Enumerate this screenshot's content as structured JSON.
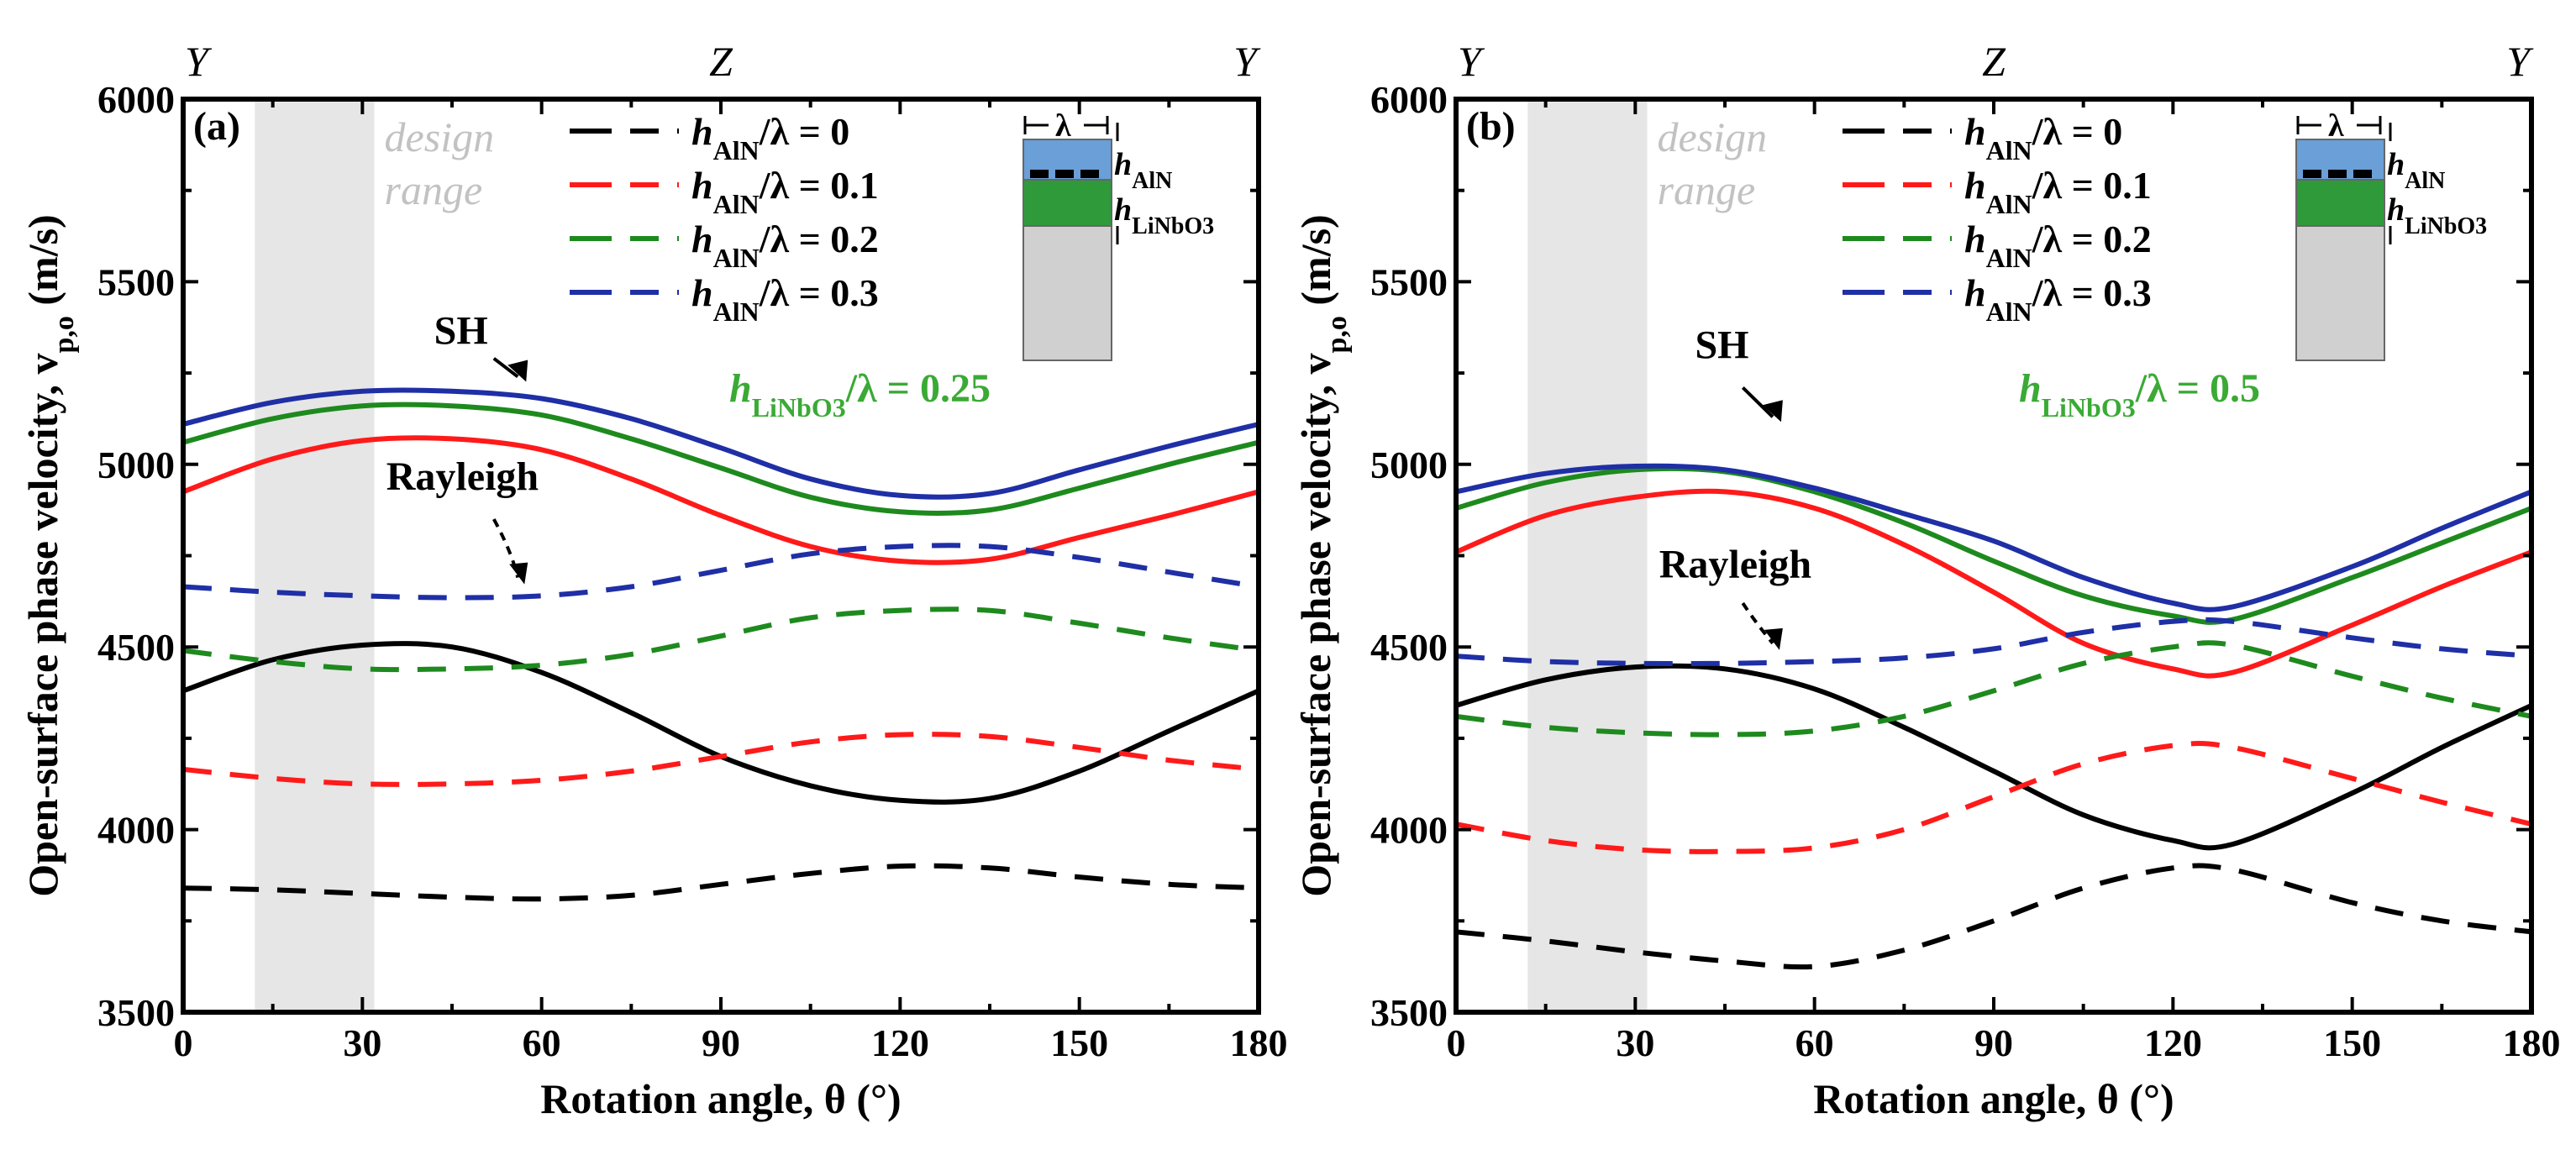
{
  "figure": {
    "colors": {
      "black": "#000000",
      "red": "#ff1a1a",
      "green": "#1e8a1e",
      "blue": "#1f2fa6",
      "design_range": "#e6e6e6",
      "design_text": "#c2c2c2",
      "hlinbo_label": "#3aaa35",
      "inset_aln": "#6a9fd8",
      "inset_linbo": "#2e9a3a",
      "inset_substrate": "#d0d0d0"
    }
  },
  "chart_data": [
    {
      "type": "line",
      "panel_label": "(a)",
      "xlabel": "Rotation angle, θ (°)",
      "ylabel": "Open-surface phase velocity, v",
      "ylabel_sub": "p,o",
      "ylabel_unit": " (m/s)",
      "xlim": [
        0,
        180
      ],
      "ylim": [
        3500,
        6000
      ],
      "xticks": [
        0,
        30,
        60,
        90,
        120,
        150,
        180
      ],
      "yticks": [
        3500,
        4000,
        4500,
        5000,
        5500,
        6000
      ],
      "top_direction_labels": [
        "Y",
        "Z",
        "Y"
      ],
      "top_direction_positions": [
        0,
        90,
        180
      ],
      "design_range": [
        12,
        32
      ],
      "design_range_text": [
        "design",
        "range"
      ],
      "h_linbo3_label": {
        "prefix": "h",
        "sub": "LiNbO3",
        "suffix": "/λ = 0.25"
      },
      "mode_labels": [
        "SH",
        "Rayleigh"
      ],
      "legend": [
        {
          "prefix": "h",
          "sub": "AlN",
          "suffix": "/λ = 0",
          "color_key": "black"
        },
        {
          "prefix": "h",
          "sub": "AlN",
          "suffix": "/λ = 0.1",
          "color_key": "red"
        },
        {
          "prefix": "h",
          "sub": "AlN",
          "suffix": "/λ = 0.2",
          "color_key": "green"
        },
        {
          "prefix": "h",
          "sub": "AlN",
          "suffix": "/λ = 0.3",
          "color_key": "blue"
        }
      ],
      "inset_labels": {
        "lambda": "λ",
        "h": "h",
        "aln_sub": "AlN",
        "linbo_sub": "LiNbO3"
      },
      "x": [
        0,
        15,
        30,
        45,
        60,
        75,
        90,
        105,
        120,
        135,
        150,
        165,
        180
      ],
      "series": [
        {
          "name": "hAlN/λ = 0 (SH)",
          "mode": "SH",
          "color_key": "black",
          "dash": false,
          "values": [
            4380,
            4465,
            4505,
            4500,
            4430,
            4320,
            4200,
            4120,
            4080,
            4085,
            4160,
            4270,
            4380
          ]
        },
        {
          "name": "hAlN/λ = 0.1 (SH)",
          "mode": "SH",
          "color_key": "red",
          "dash": false,
          "values": [
            4925,
            5015,
            5065,
            5070,
            5040,
            4960,
            4860,
            4775,
            4735,
            4740,
            4800,
            4860,
            4925
          ]
        },
        {
          "name": "hAlN/λ = 0.2 (SH)",
          "mode": "SH",
          "color_key": "green",
          "dash": false,
          "values": [
            5060,
            5125,
            5160,
            5160,
            5135,
            5070,
            4990,
            4910,
            4870,
            4875,
            4935,
            5000,
            5060
          ]
        },
        {
          "name": "hAlN/λ = 0.3 (SH)",
          "mode": "SH",
          "color_key": "blue",
          "dash": false,
          "values": [
            5110,
            5170,
            5200,
            5200,
            5180,
            5125,
            5045,
            4960,
            4915,
            4920,
            4985,
            5050,
            5110
          ]
        },
        {
          "name": "hAlN/λ = 0 (Rayleigh)",
          "mode": "Rayleigh",
          "color_key": "black",
          "dash": true,
          "values": [
            3840,
            3835,
            3825,
            3815,
            3810,
            3820,
            3850,
            3880,
            3900,
            3895,
            3870,
            3850,
            3840
          ]
        },
        {
          "name": "hAlN/λ = 0.1 (Rayleigh)",
          "mode": "Rayleigh",
          "color_key": "red",
          "dash": true,
          "values": [
            4165,
            4140,
            4125,
            4125,
            4135,
            4160,
            4200,
            4240,
            4260,
            4255,
            4225,
            4190,
            4165
          ]
        },
        {
          "name": "hAlN/λ = 0.2 (Rayleigh)",
          "mode": "Rayleigh",
          "color_key": "green",
          "dash": true,
          "values": [
            4490,
            4460,
            4440,
            4440,
            4450,
            4480,
            4530,
            4580,
            4600,
            4600,
            4565,
            4525,
            4490
          ]
        },
        {
          "name": "hAlN/λ = 0.3 (Rayleigh)",
          "mode": "Rayleigh",
          "color_key": "blue",
          "dash": true,
          "values": [
            4665,
            4650,
            4640,
            4635,
            4640,
            4665,
            4710,
            4755,
            4775,
            4775,
            4745,
            4705,
            4665
          ]
        }
      ]
    },
    {
      "type": "line",
      "panel_label": "(b)",
      "xlabel": "Rotation angle, θ (°)",
      "ylabel": "Open-surface phase velocity, v",
      "ylabel_sub": "p,o",
      "ylabel_unit": " (m/s)",
      "xlim": [
        0,
        180
      ],
      "ylim": [
        3500,
        6000
      ],
      "xticks": [
        0,
        30,
        60,
        90,
        120,
        150,
        180
      ],
      "yticks": [
        3500,
        4000,
        4500,
        5000,
        5500,
        6000
      ],
      "top_direction_labels": [
        "Y",
        "Z",
        "Y"
      ],
      "top_direction_positions": [
        0,
        90,
        180
      ],
      "design_range": [
        12,
        32
      ],
      "design_range_text": [
        "design",
        "range"
      ],
      "h_linbo3_label": {
        "prefix": "h",
        "sub": "LiNbO3",
        "suffix": "/λ = 0.5"
      },
      "mode_labels": [
        "SH",
        "Rayleigh"
      ],
      "legend": [
        {
          "prefix": "h",
          "sub": "AlN",
          "suffix": "/λ = 0",
          "color_key": "black"
        },
        {
          "prefix": "h",
          "sub": "AlN",
          "suffix": "/λ = 0.1",
          "color_key": "red"
        },
        {
          "prefix": "h",
          "sub": "AlN",
          "suffix": "/λ = 0.2",
          "color_key": "green"
        },
        {
          "prefix": "h",
          "sub": "AlN",
          "suffix": "/λ = 0.3",
          "color_key": "blue"
        }
      ],
      "inset_labels": {
        "lambda": "λ",
        "h": "h",
        "aln_sub": "AlN",
        "linbo_sub": "LiNbO3"
      },
      "x": [
        0,
        15,
        30,
        45,
        60,
        75,
        90,
        105,
        120,
        130,
        150,
        165,
        180
      ],
      "series": [
        {
          "name": "hAlN/λ = 0 (SH)",
          "mode": "SH",
          "color_key": "black",
          "dash": false,
          "values": [
            4340,
            4410,
            4445,
            4440,
            4385,
            4280,
            4160,
            4040,
            3970,
            3960,
            4100,
            4225,
            4340
          ]
        },
        {
          "name": "hAlN/λ = 0.1 (SH)",
          "mode": "SH",
          "color_key": "red",
          "dash": false,
          "values": [
            4760,
            4860,
            4910,
            4925,
            4880,
            4780,
            4650,
            4510,
            4440,
            4430,
            4560,
            4665,
            4760
          ]
        },
        {
          "name": "hAlN/λ = 0.2 (SH)",
          "mode": "SH",
          "color_key": "green",
          "dash": false,
          "values": [
            4880,
            4950,
            4985,
            4980,
            4925,
            4840,
            4735,
            4640,
            4585,
            4575,
            4690,
            4785,
            4880
          ]
        },
        {
          "name": "hAlN/λ = 0.3 (SH)",
          "mode": "SH",
          "color_key": "blue",
          "dash": false,
          "values": [
            4925,
            4975,
            4995,
            4985,
            4935,
            4865,
            4790,
            4690,
            4620,
            4610,
            4720,
            4825,
            4925
          ]
        },
        {
          "name": "hAlN/λ = 0 (Rayleigh)",
          "mode": "Rayleigh",
          "color_key": "black",
          "dash": true,
          "values": [
            3720,
            3695,
            3665,
            3640,
            3625,
            3670,
            3750,
            3840,
            3895,
            3890,
            3800,
            3750,
            3720
          ]
        },
        {
          "name": "hAlN/λ = 0.1 (Rayleigh)",
          "mode": "Rayleigh",
          "color_key": "red",
          "dash": true,
          "values": [
            4015,
            3970,
            3945,
            3940,
            3950,
            4000,
            4090,
            4180,
            4230,
            4225,
            4140,
            4075,
            4015
          ]
        },
        {
          "name": "hAlN/λ = 0.2 (Rayleigh)",
          "mode": "Rayleigh",
          "color_key": "green",
          "dash": true,
          "values": [
            4310,
            4280,
            4265,
            4260,
            4270,
            4310,
            4380,
            4455,
            4500,
            4505,
            4420,
            4360,
            4310
          ]
        },
        {
          "name": "hAlN/λ = 0.3 (Rayleigh)",
          "mode": "Rayleigh",
          "color_key": "blue",
          "dash": true,
          "values": [
            4475,
            4460,
            4455,
            4455,
            4460,
            4470,
            4495,
            4540,
            4570,
            4570,
            4525,
            4495,
            4475
          ]
        }
      ]
    }
  ]
}
